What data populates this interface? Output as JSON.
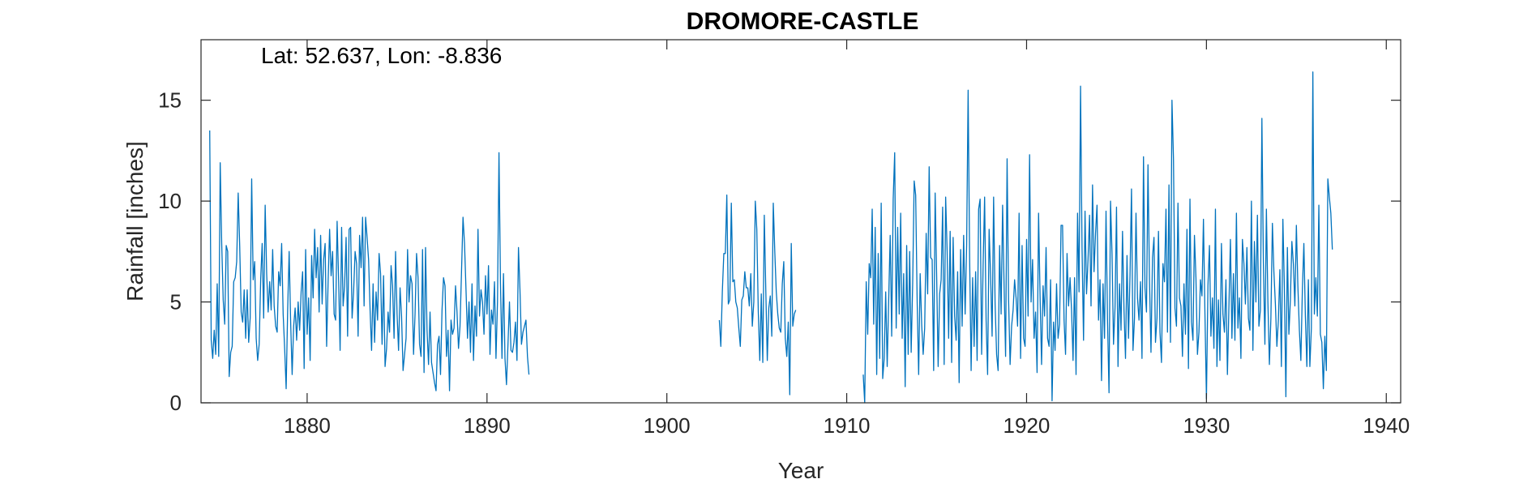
{
  "chart_data": {
    "type": "line",
    "title": "DROMORE-CASTLE",
    "xlabel": "Year",
    "ylabel": "Rainfall [inches]",
    "annotation": "Lat: 52.637, Lon: -8.836",
    "xlim": [
      1874.1,
      1940.8
    ],
    "ylim": [
      0,
      18
    ],
    "xticks": [
      1880,
      1890,
      1900,
      1910,
      1920,
      1930,
      1940
    ],
    "xtick_labels": [
      "1880",
      "1890",
      "1900",
      "1910",
      "1920",
      "1930",
      "1940"
    ],
    "yticks": [
      0,
      5,
      10,
      15
    ],
    "ytick_labels": [
      "0",
      "5",
      "10",
      "15"
    ],
    "grid": false,
    "line_color": "#0072BD",
    "series": [
      {
        "name": "Monthly rainfall",
        "segments": [
          {
            "start": 1874.583,
            "values": [
              13.5,
              3.1,
              2.2,
              3.6,
              2.4,
              5.9,
              2.3,
              11.9,
              7.9,
              5.1,
              3.9,
              7.8,
              7.5,
              1.3,
              2.5,
              2.8,
              6.0,
              6.2,
              7.0,
              10.4,
              7.8,
              4.5,
              4.0,
              5.6,
              3.2,
              5.6,
              3.0,
              4.2,
              11.1,
              6.1,
              7.0,
              3.2,
              2.1,
              2.9,
              6.1,
              7.9,
              4.2,
              9.8,
              6.4,
              4.5,
              6.0,
              4.6,
              7.6,
              4.8,
              3.8,
              3.5,
              6.5,
              5.8,
              7.9,
              4.4,
              2.7,
              0.7,
              4.6,
              7.5,
              4.0,
              1.4,
              3.8,
              4.7,
              3.1,
              5.0,
              3.6,
              5.5,
              6.5,
              1.7,
              7.6,
              3.4,
              5.2,
              2.1,
              7.3,
              5.2,
              8.6,
              6.2,
              7.7,
              4.5,
              8.3,
              4.9,
              7.1,
              7.9,
              2.8,
              6.0,
              8.6,
              6.3,
              7.5,
              4.4,
              4.1,
              9.0,
              6.1,
              2.6,
              8.7,
              4.8,
              5.8,
              8.2,
              3.3,
              8.6,
              8.7,
              4.2,
              5.5,
              7.5,
              6.9,
              3.3,
              8.3,
              6.7,
              9.2,
              4.8,
              9.2,
              8.2,
              7.1,
              4.6,
              2.6,
              5.9,
              3.0,
              5.5,
              4.1,
              7.4,
              6.4,
              2.9,
              6.3,
              1.8,
              2.7,
              4.5,
              3.5,
              6.8,
              5.8,
              3.2,
              7.5,
              4.4,
              2.6,
              5.7,
              4.3,
              1.6,
              2.4,
              3.2,
              7.6,
              5.0,
              6.3,
              5.9,
              2.4,
              4.4,
              7.4,
              6.2,
              2.9,
              2.3,
              7.6,
              1.5,
              7.7,
              3.6,
              1.9,
              4.5,
              2.0,
              1.5,
              1.0,
              0.6,
              2.9,
              3.3,
              1.4,
              4.6,
              6.2,
              5.8,
              2.3,
              3.6,
              0.6,
              4.1,
              3.4,
              3.7,
              5.8,
              4.5,
              2.7,
              3.8,
              6.5,
              9.2,
              7.9,
              5.6,
              3.2,
              5.0,
              2.5,
              5.9,
              2.1,
              4.8,
              3.3,
              8.6,
              4.3,
              5.6,
              5.0,
              3.4,
              6.3,
              4.4,
              6.8,
              2.4,
              4.6,
              3.9,
              6.0,
              2.2,
              5.0,
              12.4,
              5.9,
              2.2,
              6.4,
              2.2,
              0.9,
              2.9,
              5.0,
              2.6,
              2.5,
              3.0,
              4.0,
              2.1,
              7.7,
              5.6,
              2.9,
              3.5,
              3.8,
              4.1,
              2.3,
              1.4
            ]
          },
          {
            "start": 1902.917,
            "values": [
              4.1,
              2.8,
              5.5,
              7.4,
              7.4,
              10.3,
              4.9,
              5.1,
              9.9,
              6.0,
              6.1,
              5.0,
              4.7,
              3.7,
              2.8,
              5.1,
              5.3,
              6.5,
              5.7,
              5.7,
              4.8,
              6.4,
              3.8,
              5.0,
              10.0,
              8.6,
              4.5,
              2.1,
              5.4,
              2.0,
              9.3,
              5.6,
              2.1,
              4.7,
              5.3,
              3.3,
              9.9,
              7.5,
              5.5,
              4.4,
              3.7,
              3.5,
              5.9,
              7.0,
              3.2,
              2.3,
              4.0,
              0.4,
              7.9,
              3.8,
              4.4,
              4.6
            ]
          },
          {
            "start": 1910.917,
            "values": [
              1.4,
              0.0,
              6.0,
              3.4,
              6.9,
              6.2,
              9.6,
              3.9,
              8.7,
              1.4,
              7.4,
              2.2,
              9.9,
              1.2,
              2.2,
              5.5,
              1.8,
              5.1,
              8.3,
              3.3,
              10.1,
              12.4,
              3.7,
              8.7,
              4.4,
              9.4,
              3.2,
              6.4,
              0.8,
              7.8,
              2.4,
              7.5,
              2.5,
              5.9,
              11.0,
              10.3,
              5.0,
              1.4,
              6.4,
              3.9,
              2.4,
              3.7,
              8.4,
              5.4,
              11.7,
              7.2,
              7.1,
              1.6,
              10.4,
              6.3,
              1.8,
              5.4,
              6.1,
              9.7,
              1.9,
              10.2,
              7.5,
              3.2,
              8.5,
              2.0,
              8.2,
              4.3,
              3.1,
              6.5,
              1.0,
              7.6,
              3.8,
              8.3,
              4.4,
              7.8,
              15.5,
              7.2,
              1.6,
              6.2,
              2.8,
              6.5,
              2.1,
              9.6,
              10.1,
              2.4,
              6.8,
              10.2,
              4.1,
              1.4,
              8.6,
              6.3,
              3.3,
              10.2,
              4.9,
              2.4,
              1.6,
              7.8,
              4.4,
              9.8,
              5.8,
              2.3,
              12.1,
              5.1,
              1.9,
              3.8,
              4.6,
              6.1,
              5.2,
              3.8,
              9.4,
              2.2,
              7.8,
              3.2,
              2.8,
              8.1,
              4.3,
              12.3,
              5.0,
              7.1,
              3.2,
              4.5,
              1.5,
              9.4,
              5.3,
              1.9,
              5.8,
              4.3,
              7.7,
              3.2,
              2.8,
              6.1,
              0.1,
              4.0,
              2.6,
              5.9,
              3.2,
              3.9,
              8.8,
              8.8,
              4.1,
              2.4,
              7.4,
              4.8,
              6.2,
              4.6,
              2.1,
              6.2,
              1.4,
              9.4,
              5.5,
              15.7,
              7.7,
              3.1,
              9.5,
              5.4,
              7.1,
              9.3,
              4.8,
              10.8,
              6.5,
              8.4,
              9.8,
              4.1,
              6.1,
              1.1,
              5.9,
              3.2,
              9.5,
              4.1,
              0.5,
              10.0,
              7.4,
              2.9,
              4.7,
              9.7,
              1.8,
              5.9,
              3.6,
              8.5,
              4.6,
              2.2,
              7.3,
              3.2,
              6.3,
              10.6,
              2.6,
              4.2,
              9.4,
              5.2,
              4.1,
              6.0,
              2.2,
              12.2,
              5.7,
              4.5,
              11.8,
              6.1,
              2.5,
              7.2,
              8.2,
              3.0,
              4.2,
              8.5,
              3.5,
              2.0,
              6.9,
              6.0,
              9.6,
              3.5,
              10.8,
              3.0,
              15.0,
              12.1,
              4.7,
              3.8,
              9.9,
              5.2,
              4.8,
              2.3,
              5.9,
              3.4,
              8.6,
              1.7,
              10.1,
              4.0,
              3.1,
              8.3,
              6.2,
              2.4,
              3.5,
              6.1,
              5.3,
              9.1,
              4.4,
              0.2,
              5.8,
              7.8,
              3.3,
              5.2,
              2.7,
              9.6,
              1.8,
              5.1,
              2.1,
              7.9,
              4.4,
              3.5,
              6.1,
              1.4,
              4.8,
              8.1,
              3.2,
              6.4,
              3.1,
              9.4,
              3.7,
              5.2,
              2.2,
              8.1,
              6.9,
              4.9,
              7.7,
              4.2,
              3.6,
              10.0,
              2.6,
              8.0,
              5.0,
              9.3,
              3.8,
              4.6,
              14.1,
              6.9,
              2.9,
              9.6,
              5.0,
              1.9,
              4.2,
              8.9,
              6.5,
              4.9,
              2.8,
              4.1,
              6.6,
              1.8,
              9.1,
              5.7,
              0.3,
              7.7,
              3.4,
              5.1,
              8.0,
              6.9,
              4.8,
              8.8,
              5.8,
              3.6,
              2.1,
              5.6,
              7.9,
              4.3,
              1.8,
              6.1,
              1.8,
              3.7,
              16.4,
              4.4,
              6.2,
              4.3,
              9.8,
              3.4,
              3.0,
              0.7,
              3.3,
              1.6,
              11.1,
              10.2,
              9.4,
              7.6
            ]
          }
        ]
      }
    ]
  }
}
